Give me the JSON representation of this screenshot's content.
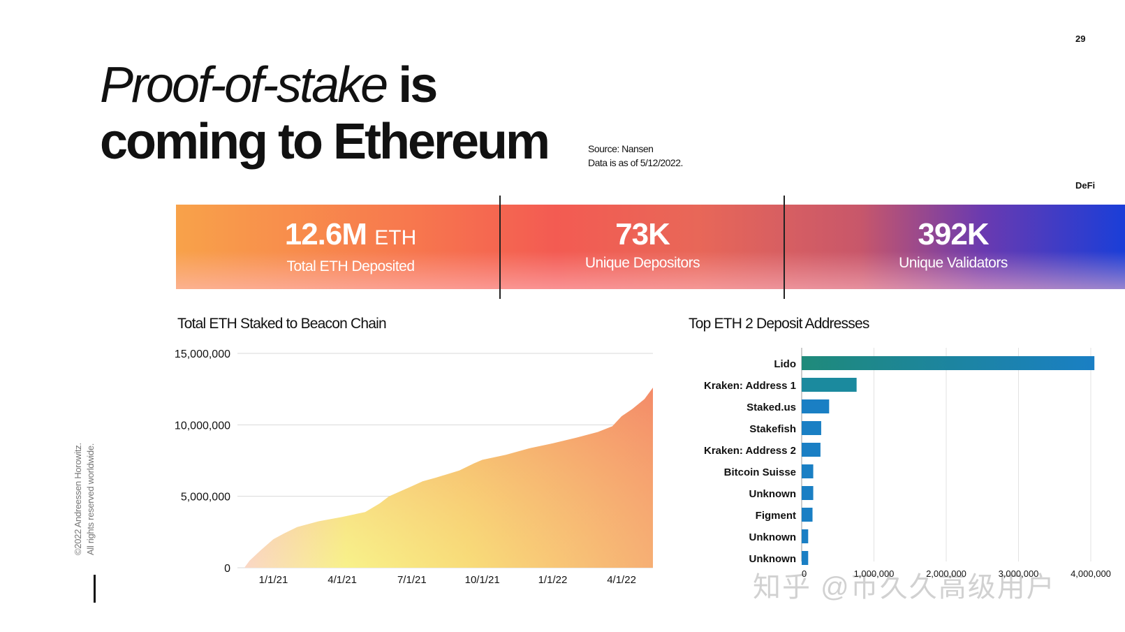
{
  "page": {
    "number": "29",
    "section": "DeFi"
  },
  "title": {
    "line1_italic": "Proof-of-stake",
    "line1_bold": "is",
    "line2": "coming to Ethereum"
  },
  "source": {
    "line1": "Source: Nansen",
    "line2": "Data is as of 5/12/2022."
  },
  "stats": [
    {
      "value": "12.6M",
      "unit": "ETH",
      "label": "Total ETH Deposited"
    },
    {
      "value": "73K",
      "unit": "",
      "label": "Unique Depositors"
    },
    {
      "value": "392K",
      "unit": "",
      "label": "Unique Validators"
    }
  ],
  "copyright": {
    "line1": "©2022 Andreessen Horowitz.",
    "line2": "All rights reserved worldwide."
  },
  "watermark": "知乎 @币久久高级用户",
  "colors": {
    "banner_start": "#f8a24a",
    "banner_mid": "#f35b52",
    "banner_end": "#1a3ed8",
    "bar_blue": "#1a7fc4",
    "bar_teal": "#1f8a7a"
  },
  "chart_data": [
    {
      "type": "area",
      "title": "Total ETH Staked to Beacon Chain",
      "x": [
        "2020-11-24",
        "2020-12-01",
        "2020-12-15",
        "2021-01-01",
        "2021-01-15",
        "2021-02-01",
        "2021-03-01",
        "2021-04-01",
        "2021-05-01",
        "2021-05-20",
        "2021-06-01",
        "2021-07-01",
        "2021-07-15",
        "2021-08-01",
        "2021-09-01",
        "2021-09-20",
        "2021-10-01",
        "2021-11-01",
        "2021-12-01",
        "2022-01-01",
        "2022-02-01",
        "2022-03-01",
        "2022-03-20",
        "2022-04-01",
        "2022-04-15",
        "2022-05-01",
        "2022-05-12"
      ],
      "y": [
        0,
        500000,
        1200000,
        2000000,
        2400000,
        2850000,
        3250000,
        3550000,
        3900000,
        4500000,
        5000000,
        5700000,
        6050000,
        6300000,
        6800000,
        7300000,
        7550000,
        7900000,
        8350000,
        8700000,
        9100000,
        9500000,
        9900000,
        10600000,
        11100000,
        11800000,
        12600000
      ],
      "xticks": [
        "1/1/21",
        "4/1/21",
        "7/1/21",
        "10/1/21",
        "1/1/22",
        "4/1/22"
      ],
      "yticks": [
        "15,000,000",
        "10,000,000",
        "5,000,000",
        "0"
      ],
      "ylim": [
        0,
        15000000
      ],
      "grid": true
    },
    {
      "type": "bar",
      "orientation": "horizontal",
      "title": "Top ETH 2 Deposit Addresses",
      "categories": [
        "Lido",
        "Kraken: Address 1",
        "Staked.us",
        "Stakefish",
        "Kraken: Address 2",
        "Bitcoin Suisse",
        "Unknown",
        "Figment",
        "Unknown",
        "Unknown"
      ],
      "values": [
        4050000,
        760000,
        380000,
        270000,
        260000,
        160000,
        160000,
        150000,
        90000,
        90000
      ],
      "xticks": [
        "0",
        "1,000,000",
        "2,000,000",
        "3,000,000",
        "4,000,000"
      ],
      "xlim": [
        0,
        4000000
      ],
      "grid": true
    }
  ]
}
